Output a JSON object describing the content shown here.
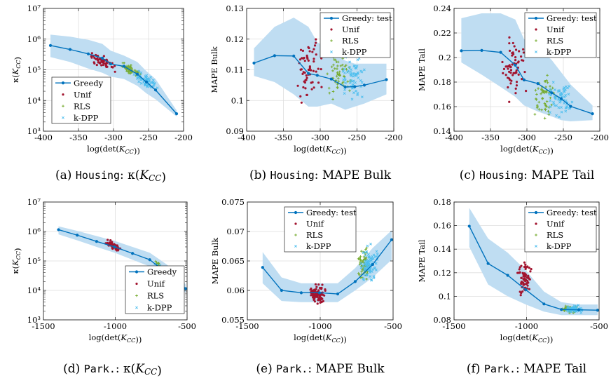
{
  "colors": {
    "greedy": "#0072BD",
    "band": "#BFDDF2",
    "unif": "#A2142F",
    "rls": "#77AC30",
    "kdpp": "#4DBEEE",
    "grid": "#dedede",
    "axis": "#262626"
  },
  "chart_data": [
    {
      "type": "line",
      "ylabel": "κ(K_CC)",
      "xlabel": "log(det(K_CC))",
      "caption_prefix": "(a) ",
      "caption_dataset": "Housing",
      "caption_suffix": ": κ(K_CC)",
      "xlim": [
        -400,
        -200
      ],
      "ylim": [
        1000,
        10000000
      ],
      "yscale": "log",
      "xticks": [
        -400,
        -350,
        -300,
        -250,
        -200
      ],
      "xtick_labels": [
        "-400",
        "-350",
        "-300",
        "-250",
        "-200"
      ],
      "yticks": [
        1000,
        10000,
        100000,
        1000000,
        10000000
      ],
      "ytick_labels": [
        "10³",
        "10⁴",
        "10⁵",
        "10⁶",
        "10⁷"
      ],
      "grid": true,
      "legend_position": "bottom-left",
      "legend": [
        "Greedy",
        "Unif",
        "RLS",
        "k-DPP"
      ],
      "greedy": {
        "x": [
          -390,
          -362,
          -336,
          -316,
          -304,
          -285,
          -266,
          -253,
          -240,
          -210
        ],
        "y": [
          620000,
          460000,
          330000,
          240000,
          155000,
          130000,
          72000,
          40000,
          22000,
          3700
        ]
      },
      "band": {
        "x": [
          -390,
          -362,
          -336,
          -316,
          -304,
          -285,
          -266,
          -253,
          -240,
          -210
        ],
        "upper": [
          1400000,
          1200000,
          950000,
          700000,
          420000,
          290000,
          180000,
          90000,
          50000,
          4800
        ],
        "lower": [
          260000,
          180000,
          110000,
          80000,
          60000,
          50000,
          30000,
          17000,
          11000,
          3000
        ]
      },
      "scatter": {
        "unif": {
          "xrange": [
            -335,
            -297
          ],
          "yrange": [
            70000,
            500000
          ],
          "n": 55
        },
        "rls": {
          "xrange": [
            -292,
            -258
          ],
          "yrange": [
            38000,
            260000
          ],
          "n": 50
        },
        "kdpp": {
          "xrange": [
            -272,
            -235
          ],
          "yrange": [
            13000,
            160000
          ],
          "n": 55
        }
      }
    },
    {
      "type": "line",
      "ylabel": "MAPE Bulk",
      "xlabel": "log(det(K_CC))",
      "caption_prefix": "(b) ",
      "caption_dataset": "Housing",
      "caption_suffix": ": MAPE Bulk",
      "xlim": [
        -400,
        -200
      ],
      "ylim": [
        0.09,
        0.13
      ],
      "yscale": "linear",
      "xticks": [
        -400,
        -350,
        -300,
        -250,
        -200
      ],
      "xtick_labels": [
        "-400",
        "-350",
        "-300",
        "-250",
        "-200"
      ],
      "yticks": [
        0.09,
        0.1,
        0.11,
        0.12,
        0.13
      ],
      "ytick_labels": [
        "0.09",
        "0.1",
        "0.11",
        "0.12",
        "0.13"
      ],
      "grid": true,
      "legend_position": "top-right",
      "legend": [
        "Greedy: test",
        "Unif",
        "RLS",
        "k-DPP"
      ],
      "greedy": {
        "x": [
          -390,
          -362,
          -336,
          -316,
          -304,
          -285,
          -266,
          -253,
          -240,
          -210
        ],
        "y": [
          0.1122,
          0.1146,
          0.1145,
          0.1088,
          0.1082,
          0.107,
          0.1044,
          0.1045,
          0.105,
          0.1068
        ]
      },
      "band": {
        "x": [
          -390,
          -362,
          -336,
          -316,
          -304,
          -285,
          -266,
          -253,
          -240,
          -210
        ],
        "upper": [
          0.117,
          0.124,
          0.127,
          0.124,
          0.119,
          0.116,
          0.113,
          0.112,
          0.112,
          0.112
        ],
        "lower": [
          0.108,
          0.106,
          0.102,
          0.098,
          0.098,
          0.099,
          0.097,
          0.098,
          0.099,
          0.102
        ]
      },
      "scatter": {
        "unif": {
          "xrange": [
            -335,
            -297
          ],
          "yrange": [
            0.097,
            0.123
          ],
          "n": 60
        },
        "rls": {
          "xrange": [
            -292,
            -258
          ],
          "yrange": [
            0.099,
            0.118
          ],
          "n": 55
        },
        "kdpp": {
          "xrange": [
            -272,
            -235
          ],
          "yrange": [
            0.098,
            0.116
          ],
          "n": 60
        }
      }
    },
    {
      "type": "line",
      "ylabel": "MAPE Tail",
      "xlabel": "log(det(K_CC))",
      "caption_prefix": "(c) ",
      "caption_dataset": "Housing",
      "caption_suffix": ": MAPE Tail",
      "xlim": [
        -400,
        -200
      ],
      "ylim": [
        0.14,
        0.24
      ],
      "yscale": "linear",
      "xticks": [
        -400,
        -350,
        -300,
        -250,
        -200
      ],
      "xtick_labels": [
        "-400",
        "-350",
        "-300",
        "-250",
        "-200"
      ],
      "yticks": [
        0.14,
        0.16,
        0.18,
        0.2,
        0.22,
        0.24
      ],
      "ytick_labels": [
        "0.14",
        "0.16",
        "0.18",
        "0.2",
        "0.22",
        "0.24"
      ],
      "grid": true,
      "legend_position": "top-right",
      "legend": [
        "Greedy: test",
        "Unif",
        "RLS",
        "k-DPP"
      ],
      "greedy": {
        "x": [
          -390,
          -362,
          -336,
          -316,
          -304,
          -285,
          -266,
          -253,
          -240,
          -210
        ],
        "y": [
          0.2055,
          0.2058,
          0.2042,
          0.1938,
          0.1818,
          0.1788,
          0.1712,
          0.1665,
          0.1602,
          0.1542
        ]
      },
      "band": {
        "x": [
          -390,
          -362,
          -336,
          -316,
          -304,
          -285,
          -266,
          -253,
          -240,
          -210
        ],
        "upper": [
          0.232,
          0.236,
          0.236,
          0.231,
          0.215,
          0.208,
          0.198,
          0.188,
          0.178,
          0.161
        ],
        "lower": [
          0.196,
          0.186,
          0.176,
          0.168,
          0.161,
          0.156,
          0.152,
          0.149,
          0.148,
          0.149
        ]
      },
      "scatter": {
        "unif": {
          "xrange": [
            -335,
            -297
          ],
          "yrange": [
            0.16,
            0.223
          ],
          "n": 60
        },
        "rls": {
          "xrange": [
            -292,
            -258
          ],
          "yrange": [
            0.145,
            0.19
          ],
          "n": 55
        },
        "kdpp": {
          "xrange": [
            -272,
            -235
          ],
          "yrange": [
            0.148,
            0.185
          ],
          "n": 60
        }
      }
    },
    {
      "type": "line",
      "ylabel": "κ(K_CC)",
      "xlabel": "log(det(K_CC))",
      "caption_prefix": "(d) ",
      "caption_dataset": "Park.",
      "caption_suffix": ": κ(K_CC)",
      "xlim": [
        -1500,
        -500
      ],
      "ylim": [
        1000,
        10000000
      ],
      "yscale": "log",
      "xticks": [
        -1500,
        -1000,
        -500
      ],
      "xtick_labels": [
        "-1500",
        "-1000",
        "-500"
      ],
      "yticks": [
        1000,
        10000,
        100000,
        1000000,
        10000000
      ],
      "ytick_labels": [
        "10³",
        "10⁴",
        "10⁵",
        "10⁶",
        "10⁷"
      ],
      "grid": true,
      "legend_position": "bottom-right",
      "legend": [
        "Greedy",
        "Unif",
        "RLS",
        "k-DPP"
      ],
      "greedy": {
        "x": [
          -1395,
          -1265,
          -1130,
          -1005,
          -880,
          -760,
          -640,
          -510
        ],
        "y": [
          1150000,
          750000,
          460000,
          300000,
          180000,
          110000,
          38000,
          11500
        ]
      },
      "band": {
        "x": [
          -1395,
          -1265,
          -1130,
          -1005,
          -880,
          -760,
          -640,
          -510
        ],
        "upper": [
          1500000,
          1050000,
          700000,
          480000,
          300000,
          190000,
          75000,
          16000
        ],
        "lower": [
          800000,
          500000,
          300000,
          190000,
          110000,
          65000,
          22000,
          8500
        ]
      },
      "scatter": {
        "unif": {
          "xrange": [
            -1075,
            -965
          ],
          "yrange": [
            170000,
            650000
          ],
          "n": 60
        },
        "rls": {
          "xrange": [
            -720,
            -680
          ],
          "yrange": [
            55000,
            110000
          ],
          "n": 12
        },
        "kdpp": {
          "xrange": [
            -730,
            -660
          ],
          "yrange": [
            45000,
            90000
          ],
          "n": 10
        }
      }
    },
    {
      "type": "line",
      "ylabel": "MAPE Bulk",
      "xlabel": "log(det(K_CC))",
      "caption_prefix": "(e) ",
      "caption_dataset": "Park.",
      "caption_suffix": ": MAPE Bulk",
      "xlim": [
        -1500,
        -500
      ],
      "ylim": [
        0.055,
        0.075
      ],
      "yscale": "linear",
      "xticks": [
        -1500,
        -1000,
        -500
      ],
      "xtick_labels": [
        "-1500",
        "-1000",
        "-500"
      ],
      "yticks": [
        0.055,
        0.06,
        0.065,
        0.07,
        0.075
      ],
      "ytick_labels": [
        "0.055",
        "0.06",
        "0.065",
        "0.07",
        "0.075"
      ],
      "grid": true,
      "legend_position": "top-right",
      "legend": [
        "Greedy: test",
        "Unif",
        "RLS",
        "k-DPP"
      ],
      "greedy": {
        "x": [
          -1395,
          -1265,
          -1130,
          -1005,
          -880,
          -760,
          -640,
          -510
        ],
        "y": [
          0.0639,
          0.06,
          0.0596,
          0.0596,
          0.0594,
          0.0615,
          0.0644,
          0.0686
        ]
      },
      "band": {
        "x": [
          -1395,
          -1265,
          -1130,
          -1005,
          -880,
          -760,
          -640,
          -510
        ],
        "upper": [
          0.0665,
          0.0622,
          0.0612,
          0.0612,
          0.0612,
          0.0638,
          0.0672,
          0.0702
        ],
        "lower": [
          0.0612,
          0.0582,
          0.058,
          0.058,
          0.058,
          0.06,
          0.0622,
          0.0652
        ]
      },
      "scatter": {
        "unif": {
          "xrange": [
            -1080,
            -960
          ],
          "yrange": [
            0.0575,
            0.0615
          ],
          "n": 80
        },
        "rls": {
          "xrange": [
            -740,
            -660
          ],
          "yrange": [
            0.0605,
            0.0682
          ],
          "n": 55
        },
        "kdpp": {
          "xrange": [
            -720,
            -600
          ],
          "yrange": [
            0.061,
            0.0685
          ],
          "n": 80
        }
      }
    },
    {
      "type": "line",
      "ylabel": "MAPE Tail",
      "xlabel": "log(det(K_CC))",
      "caption_prefix": "(f) ",
      "caption_dataset": "Park.",
      "caption_suffix": ": MAPE Tail",
      "xlim": [
        -1500,
        -500
      ],
      "ylim": [
        0.08,
        0.18
      ],
      "yscale": "linear",
      "xticks": [
        -1500,
        -1000,
        -500
      ],
      "xtick_labels": [
        "-1500",
        "-1000",
        "-500"
      ],
      "yticks": [
        0.08,
        0.1,
        0.12,
        0.14,
        0.16,
        0.18
      ],
      "ytick_labels": [
        "0.08",
        "0.1",
        "0.12",
        "0.14",
        "0.16",
        "0.18"
      ],
      "grid": true,
      "legend_position": "top-right",
      "legend": [
        "Greedy: test",
        "Unif",
        "RLS",
        "k-DPP"
      ],
      "greedy": {
        "x": [
          -1395,
          -1265,
          -1130,
          -1005,
          -880,
          -760,
          -640,
          -510
        ],
        "y": [
          0.1595,
          0.1278,
          0.1178,
          0.1055,
          0.0935,
          0.0888,
          0.0885,
          0.0882
        ]
      },
      "band": {
        "x": [
          -1395,
          -1265,
          -1130,
          -1005,
          -880,
          -760,
          -640,
          -510
        ],
        "upper": [
          0.175,
          0.149,
          0.137,
          0.122,
          0.104,
          0.095,
          0.093,
          0.093
        ],
        "lower": [
          0.142,
          0.11,
          0.1,
          0.093,
          0.087,
          0.084,
          0.084,
          0.084
        ]
      },
      "scatter": {
        "unif": {
          "xrange": [
            -1075,
            -960
          ],
          "yrange": [
            0.093,
            0.135
          ],
          "n": 65
        },
        "rls": {
          "xrange": [
            -760,
            -640
          ],
          "yrange": [
            0.085,
            0.093
          ],
          "n": 55
        },
        "kdpp": {
          "xrange": [
            -740,
            -600
          ],
          "yrange": [
            0.085,
            0.093
          ],
          "n": 60
        }
      }
    }
  ]
}
